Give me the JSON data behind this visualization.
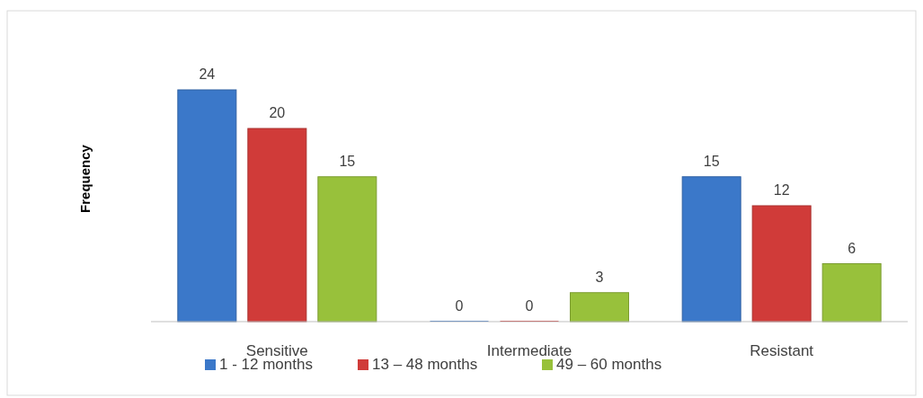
{
  "chart_data": {
    "type": "bar",
    "ylabel": "Frequency",
    "categories": [
      "Sensitive",
      "Intermediate",
      "Resistant"
    ],
    "series": [
      {
        "name": "1 - 12 months",
        "color": "#3b78c9",
        "values": [
          24,
          0,
          15
        ]
      },
      {
        "name": "13 – 48 months",
        "color": "#d03b39",
        "values": [
          20,
          0,
          12
        ]
      },
      {
        "name": "49 – 60 months",
        "color": "#98c13b",
        "values": [
          15,
          3,
          6
        ]
      }
    ],
    "data_labels": true,
    "legend": "bottom",
    "grid": false
  }
}
